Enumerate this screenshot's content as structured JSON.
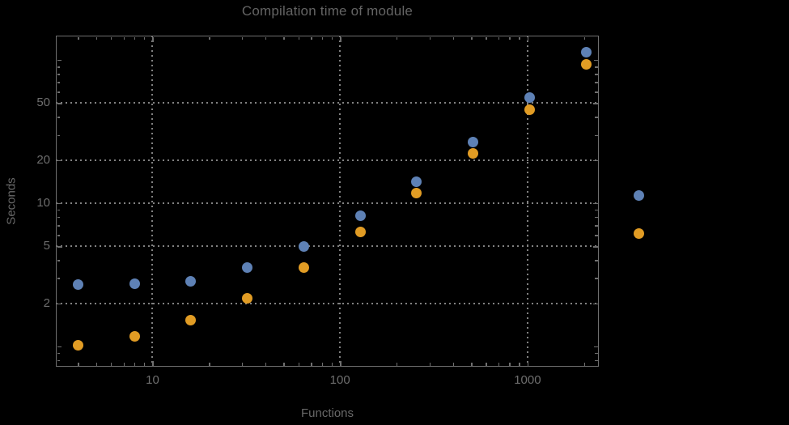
{
  "title": "Compilation time of module",
  "colors": {
    "background": "#000000",
    "frame": "#6f6f6f",
    "gridlines": "#818181",
    "text": "#676767",
    "series1": "#5E81B5",
    "series2": "#E19C24"
  },
  "chart_data": {
    "type": "scatter",
    "title": "Compilation time of module",
    "xlabel": "Functions",
    "ylabel": "Seconds",
    "x_scale": "log",
    "y_scale": "log",
    "xlim": [
      3.05,
      2400
    ],
    "ylim": [
      0.72,
      148
    ],
    "grid": "dotted",
    "marker_size": 13,
    "x": [
      4,
      8,
      16,
      32,
      64,
      128,
      256,
      512,
      1024,
      2048
    ],
    "series": [
      {
        "name": "series-1",
        "color": "#5E81B5",
        "values": [
          2.7,
          2.72,
          2.86,
          3.53,
          5.0,
          8.16,
          14.2,
          26.7,
          54.5,
          114
        ]
      },
      {
        "name": "series-2",
        "color": "#E19C24",
        "values": [
          1.02,
          1.18,
          1.52,
          2.16,
          3.54,
          6.26,
          11.7,
          22.3,
          45.0,
          93.8
        ]
      }
    ],
    "x_axis": {
      "major_ticks": [
        10,
        100,
        1000
      ],
      "tick_labels": [
        "10",
        "100",
        "1000"
      ],
      "minor_ticks": [
        4,
        5,
        6,
        7,
        8,
        9,
        20,
        30,
        40,
        50,
        60,
        70,
        80,
        90,
        200,
        300,
        400,
        500,
        600,
        700,
        800,
        900,
        2000
      ],
      "gridlines": [
        10,
        100,
        1000
      ]
    },
    "y_axis": {
      "major_ticks": [
        2,
        5,
        10,
        20,
        50
      ],
      "tick_labels": [
        "2",
        "5",
        "10",
        "20",
        "50"
      ],
      "unlabeled_major_ticks": [
        1,
        100
      ],
      "minor_ticks": [
        0.8,
        0.9,
        3,
        4,
        6,
        7,
        8,
        9,
        30,
        40,
        60,
        70,
        80,
        90
      ],
      "gridlines": [
        2,
        5,
        10,
        20,
        50
      ]
    },
    "legend_position": "right",
    "legend": [
      {
        "series": "series-1",
        "color": "#5E81B5",
        "label": ""
      },
      {
        "series": "series-2",
        "color": "#E19C24",
        "label": ""
      }
    ]
  }
}
